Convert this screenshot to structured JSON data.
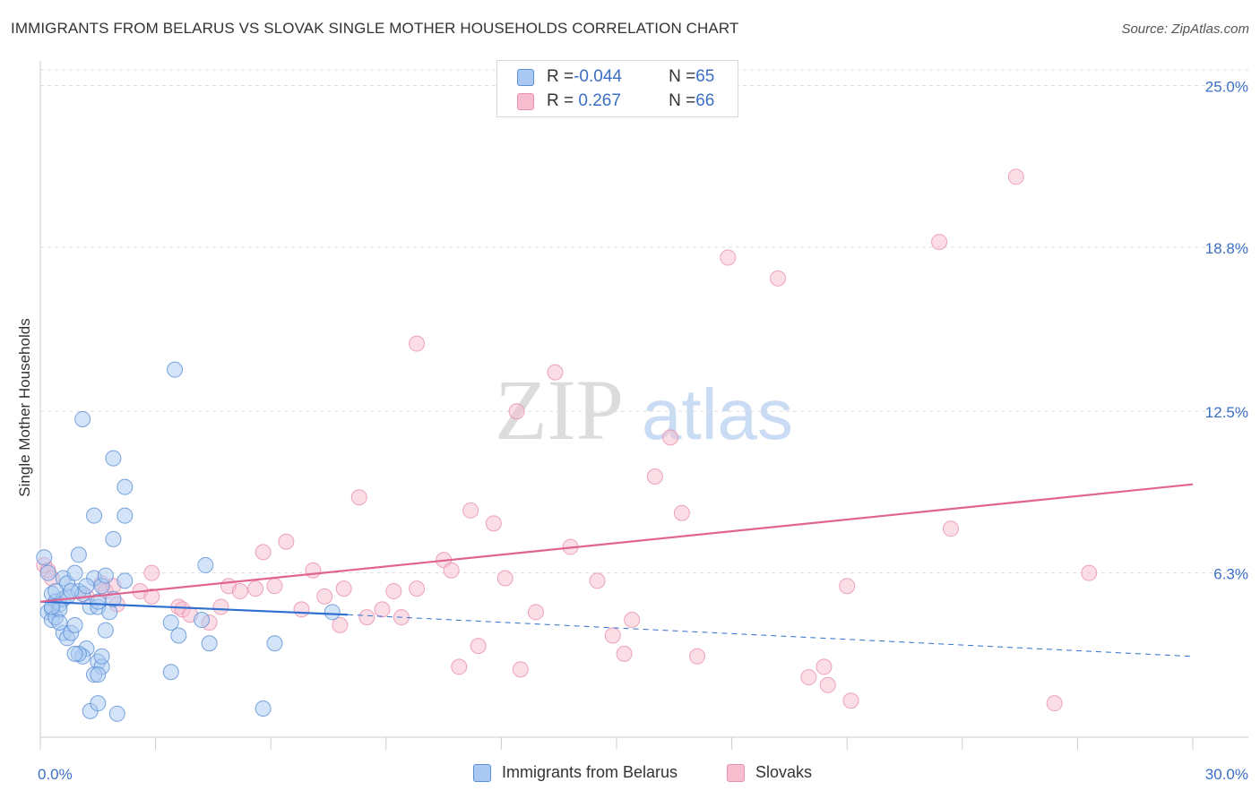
{
  "title": "IMMIGRANTS FROM BELARUS VS SLOVAK SINGLE MOTHER HOUSEHOLDS CORRELATION CHART",
  "source": "Source: ZipAtlas.com",
  "watermark": {
    "zip": "ZIP",
    "atlas": "atlas"
  },
  "legend": {
    "rows": [
      {
        "r_label": "R = ",
        "r_value": "-0.044",
        "n_label": "N = ",
        "n_value": "65"
      },
      {
        "r_label": "R = ",
        "r_value": " 0.267",
        "n_label": "N = ",
        "n_value": "66"
      }
    ]
  },
  "colors": {
    "belarus_fill": "#a9c9f2",
    "belarus_stroke": "#5b8fd6",
    "belarus_line": "#2f6fcf",
    "slovak_fill": "#f7bccd",
    "slovak_stroke": "#e890ad",
    "slovak_line": "#e0648f",
    "axis_text": "#3a6fc4",
    "grid": "#dddddd"
  },
  "chart_data": {
    "type": "scatter",
    "title": "IMMIGRANTS FROM BELARUS VS SLOVAK SINGLE MOTHER HOUSEHOLDS CORRELATION CHART",
    "xlabel": "",
    "ylabel": "Single Mother Households",
    "xlim": [
      0,
      30
    ],
    "ylim": [
      0,
      25.6
    ],
    "x_tick_labels": [
      "0.0%",
      "30.0%"
    ],
    "y_tick_labels": [
      "25.0%",
      "18.8%",
      "12.5%",
      "6.3%"
    ],
    "y_tick_values": [
      25.0,
      18.8,
      12.5,
      6.3
    ],
    "grid": true,
    "legend_position": "top-center",
    "series": [
      {
        "name": "Immigrants from Belarus",
        "r": -0.044,
        "n": 65,
        "trend": {
          "x0": 0,
          "y0": 5.2,
          "x1": 8.0,
          "y1": 4.7,
          "dash_x1": 30,
          "dash_y1": 3.1
        },
        "points": [
          [
            0.1,
            6.9
          ],
          [
            0.2,
            6.3
          ],
          [
            0.3,
            5.5
          ],
          [
            0.4,
            5.2
          ],
          [
            0.5,
            5.1
          ],
          [
            0.6,
            5.3
          ],
          [
            0.7,
            5.4
          ],
          [
            0.3,
            4.9
          ],
          [
            0.2,
            4.8
          ],
          [
            0.3,
            4.5
          ],
          [
            0.4,
            4.6
          ],
          [
            0.5,
            4.9
          ],
          [
            0.6,
            4.0
          ],
          [
            0.7,
            3.8
          ],
          [
            0.8,
            4.0
          ],
          [
            0.9,
            4.3
          ],
          [
            0.6,
            6.1
          ],
          [
            0.7,
            5.9
          ],
          [
            1.0,
            5.6
          ],
          [
            1.0,
            7.0
          ],
          [
            1.1,
            5.5
          ],
          [
            1.3,
            5.0
          ],
          [
            1.4,
            6.1
          ],
          [
            1.5,
            5.0
          ],
          [
            1.6,
            5.8
          ],
          [
            1.7,
            6.2
          ],
          [
            1.5,
            5.2
          ],
          [
            1.8,
            4.8
          ],
          [
            1.9,
            5.3
          ],
          [
            2.2,
            6.0
          ],
          [
            1.2,
            3.4
          ],
          [
            1.1,
            3.1
          ],
          [
            1.0,
            3.2
          ],
          [
            0.9,
            3.2
          ],
          [
            1.5,
            2.9
          ],
          [
            1.6,
            2.7
          ],
          [
            1.4,
            2.4
          ],
          [
            1.5,
            2.4
          ],
          [
            1.3,
            1.0
          ],
          [
            1.5,
            1.3
          ],
          [
            2.0,
            0.9
          ],
          [
            1.4,
            8.5
          ],
          [
            2.2,
            8.5
          ],
          [
            2.2,
            9.6
          ],
          [
            1.9,
            7.6
          ],
          [
            1.9,
            10.7
          ],
          [
            1.1,
            12.2
          ],
          [
            3.5,
            14.1
          ],
          [
            3.4,
            4.4
          ],
          [
            3.6,
            3.9
          ],
          [
            4.2,
            4.5
          ],
          [
            4.3,
            6.6
          ],
          [
            4.4,
            3.6
          ],
          [
            3.4,
            2.5
          ],
          [
            5.8,
            1.1
          ],
          [
            6.1,
            3.6
          ],
          [
            7.6,
            4.8
          ],
          [
            1.7,
            4.1
          ],
          [
            0.9,
            6.3
          ],
          [
            0.8,
            5.6
          ],
          [
            1.2,
            5.8
          ],
          [
            0.5,
            4.4
          ],
          [
            0.3,
            5.0
          ],
          [
            1.6,
            3.1
          ],
          [
            0.4,
            5.6
          ]
        ]
      },
      {
        "name": "Slovaks",
        "r": 0.267,
        "n": 66,
        "trend": {
          "x0": 0,
          "y0": 5.2,
          "x1": 30,
          "y1": 9.7
        },
        "points": [
          [
            0.1,
            6.6
          ],
          [
            0.2,
            6.4
          ],
          [
            1.2,
            5.4
          ],
          [
            1.6,
            5.9
          ],
          [
            1.7,
            5.6
          ],
          [
            2.0,
            5.1
          ],
          [
            2.6,
            5.6
          ],
          [
            2.9,
            6.3
          ],
          [
            2.9,
            5.4
          ],
          [
            3.6,
            5.0
          ],
          [
            3.7,
            4.9
          ],
          [
            3.9,
            4.7
          ],
          [
            4.4,
            4.4
          ],
          [
            4.7,
            5.0
          ],
          [
            4.9,
            5.8
          ],
          [
            5.2,
            5.6
          ],
          [
            5.6,
            5.7
          ],
          [
            5.8,
            7.1
          ],
          [
            6.1,
            5.8
          ],
          [
            6.4,
            7.5
          ],
          [
            6.8,
            4.9
          ],
          [
            7.1,
            6.4
          ],
          [
            7.4,
            5.4
          ],
          [
            7.8,
            4.3
          ],
          [
            7.9,
            5.7
          ],
          [
            8.3,
            9.2
          ],
          [
            8.5,
            4.6
          ],
          [
            8.9,
            4.9
          ],
          [
            9.2,
            5.6
          ],
          [
            9.4,
            4.6
          ],
          [
            9.8,
            5.7
          ],
          [
            9.8,
            15.1
          ],
          [
            10.5,
            6.8
          ],
          [
            10.7,
            6.4
          ],
          [
            10.9,
            2.7
          ],
          [
            11.2,
            8.7
          ],
          [
            11.4,
            3.5
          ],
          [
            11.8,
            8.2
          ],
          [
            12.1,
            6.1
          ],
          [
            12.4,
            12.5
          ],
          [
            12.5,
            2.6
          ],
          [
            12.9,
            4.8
          ],
          [
            13.4,
            14.0
          ],
          [
            13.8,
            7.3
          ],
          [
            14.5,
            6.0
          ],
          [
            14.9,
            3.9
          ],
          [
            15.2,
            3.2
          ],
          [
            15.4,
            4.5
          ],
          [
            16.0,
            10.0
          ],
          [
            16.4,
            11.5
          ],
          [
            16.7,
            8.6
          ],
          [
            17.1,
            3.1
          ],
          [
            17.9,
            18.4
          ],
          [
            19.2,
            17.6
          ],
          [
            20.0,
            2.3
          ],
          [
            20.4,
            2.7
          ],
          [
            20.5,
            2.0
          ],
          [
            21.0,
            5.8
          ],
          [
            21.1,
            1.4
          ],
          [
            23.4,
            19.0
          ],
          [
            23.7,
            8.0
          ],
          [
            25.4,
            21.5
          ],
          [
            26.4,
            1.3
          ],
          [
            27.3,
            6.3
          ],
          [
            0.3,
            6.1
          ],
          [
            1.9,
            5.8
          ]
        ]
      }
    ]
  },
  "bottom_legend": {
    "items": [
      "Immigrants from Belarus",
      "Slovaks"
    ]
  }
}
